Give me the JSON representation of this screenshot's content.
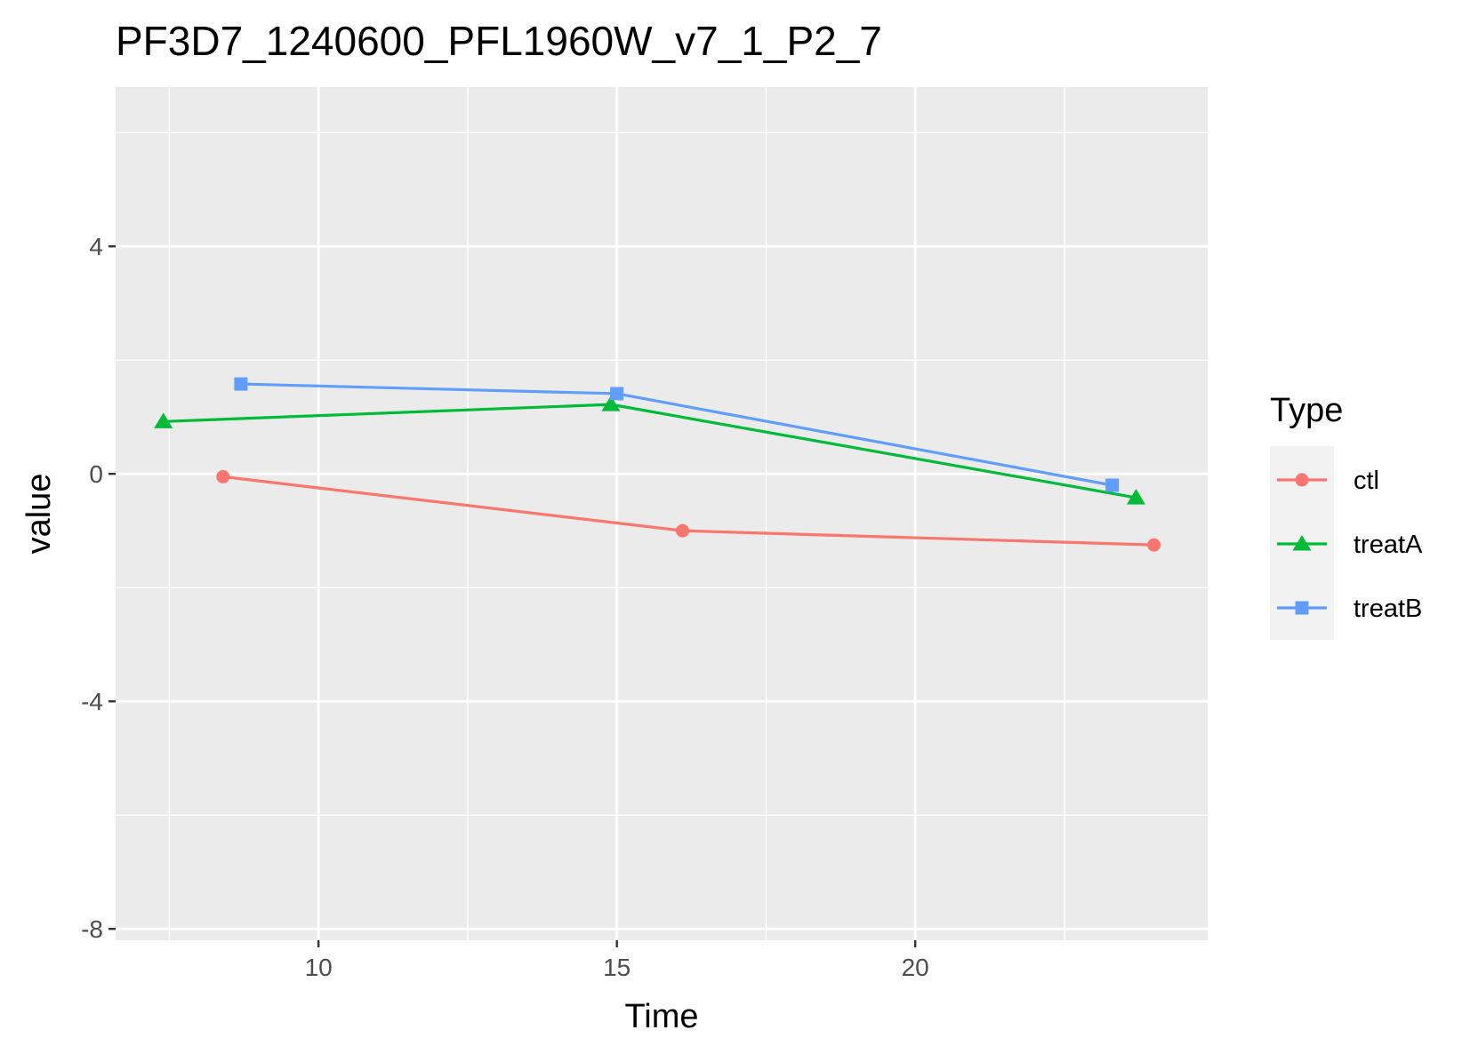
{
  "chart_data": {
    "type": "line",
    "title": "PF3D7_1240600_PFL1960W_v7_1_P2_7",
    "xlabel": "Time",
    "ylabel": "value",
    "xlim": [
      6.6,
      24.9
    ],
    "ylim": [
      -8.2,
      6.8
    ],
    "x_ticks": [
      10,
      15,
      20
    ],
    "x_tick_labels": [
      "10",
      "15",
      "20"
    ],
    "y_ticks": [
      4,
      0,
      -4,
      -8
    ],
    "y_tick_labels": [
      "4",
      "0",
      "-4",
      "-8"
    ],
    "grid": true,
    "legend": {
      "title": "Type",
      "position": "right"
    },
    "series": [
      {
        "name": "ctl",
        "color": "#F8766D",
        "marker": "circle",
        "x": [
          8.4,
          16.1,
          24.0
        ],
        "y": [
          -0.05,
          -1.0,
          -1.25
        ]
      },
      {
        "name": "treatA",
        "color": "#00BA38",
        "marker": "triangle",
        "x": [
          7.4,
          14.9,
          23.7
        ],
        "y": [
          0.92,
          1.22,
          -0.42
        ]
      },
      {
        "name": "treatB",
        "color": "#619CFF",
        "marker": "square",
        "x": [
          8.7,
          15.0,
          23.3
        ],
        "y": [
          1.58,
          1.41,
          -0.2
        ]
      }
    ]
  }
}
